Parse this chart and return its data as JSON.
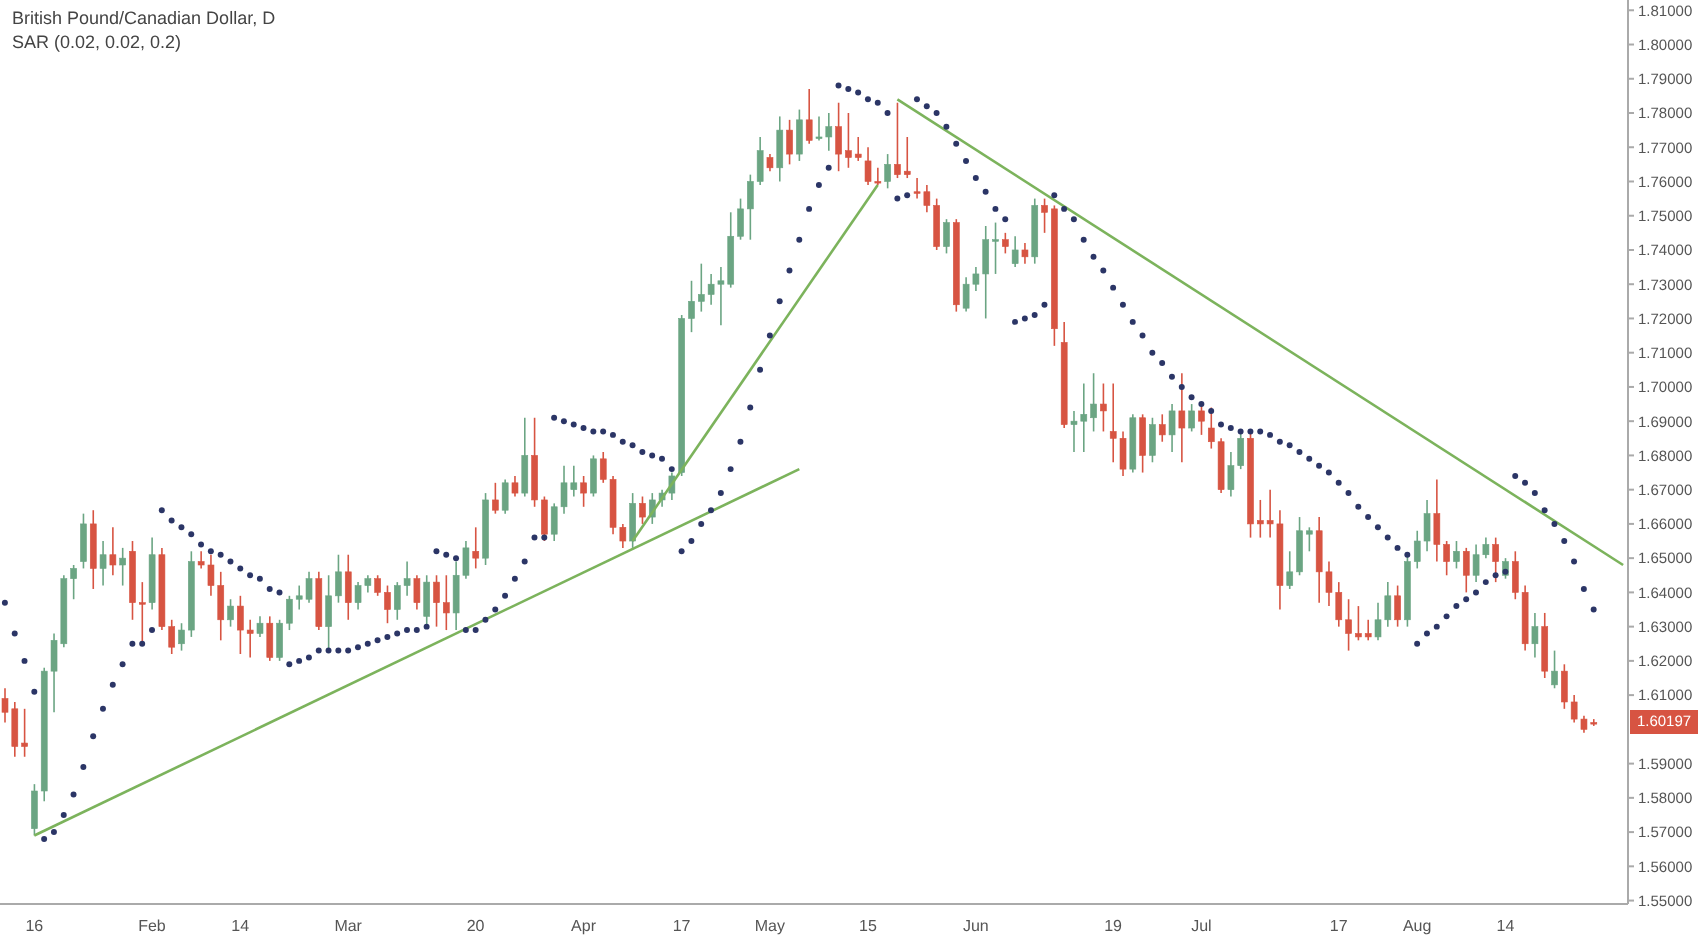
{
  "chart_data": {
    "type": "candlestick",
    "title": "British Pound/Canadian Dollar, D",
    "subtitle": "SAR (0.02, 0.02, 0.2)",
    "categories": [
      null,
      null,
      null,
      "16",
      null,
      null,
      null,
      null,
      null,
      null,
      null,
      null,
      null,
      null,
      null,
      "Feb",
      null,
      null,
      null,
      null,
      null,
      null,
      null,
      null,
      "14",
      null,
      null,
      null,
      null,
      null,
      null,
      null,
      null,
      null,
      null,
      "Mar",
      null,
      null,
      null,
      null,
      null,
      null,
      null,
      null,
      null,
      null,
      null,
      null,
      "20",
      null,
      null,
      null,
      null,
      null,
      null,
      null,
      null,
      null,
      null,
      "Apr",
      null,
      null,
      null,
      null,
      null,
      null,
      null,
      null,
      null,
      "17",
      null,
      null,
      null,
      null,
      null,
      null,
      null,
      null,
      "May",
      null,
      null,
      null,
      null,
      null,
      null,
      null,
      null,
      null,
      "15",
      null,
      null,
      null,
      null,
      null,
      null,
      null,
      null,
      null,
      null,
      "Jun",
      null,
      null,
      null,
      null,
      null,
      null,
      null,
      null,
      null,
      null,
      null,
      null,
      null,
      "19",
      null,
      null,
      null,
      null,
      null,
      null,
      null,
      null,
      "Jul",
      null,
      null,
      null,
      null,
      null,
      null,
      null,
      null,
      null,
      null,
      null,
      null,
      null,
      "17",
      null,
      null,
      null,
      null,
      null,
      null,
      null,
      "Aug",
      null,
      null,
      null,
      null,
      null,
      null,
      null,
      null,
      "14",
      null,
      null,
      null,
      null,
      null,
      null,
      null,
      null,
      null,
      null,
      null,
      null
    ],
    "ohlc": [
      [
        1.609,
        1.612,
        1.602,
        1.605
      ],
      [
        1.606,
        1.608,
        1.592,
        1.595
      ],
      [
        1.596,
        1.606,
        1.592,
        1.595
      ],
      [
        1.571,
        1.584,
        1.569,
        1.582
      ],
      [
        1.582,
        1.618,
        1.579,
        1.617
      ],
      [
        1.617,
        1.628,
        1.605,
        1.626
      ],
      [
        1.625,
        1.645,
        1.624,
        1.644
      ],
      [
        1.644,
        1.648,
        1.638,
        1.647
      ],
      [
        1.649,
        1.663,
        1.647,
        1.66
      ],
      [
        1.66,
        1.664,
        1.641,
        1.647
      ],
      [
        1.647,
        1.655,
        1.642,
        1.651
      ],
      [
        1.651,
        1.659,
        1.645,
        1.648
      ],
      [
        1.648,
        1.653,
        1.642,
        1.65
      ],
      [
        1.652,
        1.655,
        1.632,
        1.637
      ],
      [
        1.637,
        1.643,
        1.625,
        1.637
      ],
      [
        1.637,
        1.656,
        1.635,
        1.651
      ],
      [
        1.651,
        1.653,
        1.629,
        1.63
      ],
      [
        1.63,
        1.632,
        1.622,
        1.624
      ],
      [
        1.625,
        1.631,
        1.623,
        1.629
      ],
      [
        1.629,
        1.652,
        1.627,
        1.649
      ],
      [
        1.649,
        1.652,
        1.647,
        1.648
      ],
      [
        1.648,
        1.651,
        1.639,
        1.642
      ],
      [
        1.642,
        1.646,
        1.626,
        1.632
      ],
      [
        1.632,
        1.638,
        1.63,
        1.636
      ],
      [
        1.636,
        1.639,
        1.622,
        1.629
      ],
      [
        1.629,
        1.632,
        1.621,
        1.628
      ],
      [
        1.628,
        1.633,
        1.627,
        1.631
      ],
      [
        1.631,
        1.633,
        1.62,
        1.621
      ],
      [
        1.621,
        1.632,
        1.62,
        1.631
      ],
      [
        1.631,
        1.639,
        1.629,
        1.638
      ],
      [
        1.638,
        1.642,
        1.635,
        1.639
      ],
      [
        1.638,
        1.646,
        1.637,
        1.644
      ],
      [
        1.644,
        1.646,
        1.629,
        1.63
      ],
      [
        1.63,
        1.645,
        1.623,
        1.639
      ],
      [
        1.639,
        1.651,
        1.637,
        1.646
      ],
      [
        1.646,
        1.651,
        1.632,
        1.637
      ],
      [
        1.637,
        1.643,
        1.635,
        1.642
      ],
      [
        1.642,
        1.645,
        1.64,
        1.644
      ],
      [
        1.644,
        1.645,
        1.639,
        1.64
      ],
      [
        1.64,
        1.642,
        1.631,
        1.635
      ],
      [
        1.635,
        1.643,
        1.632,
        1.642
      ],
      [
        1.642,
        1.649,
        1.639,
        1.644
      ],
      [
        1.644,
        1.645,
        1.635,
        1.637
      ],
      [
        1.633,
        1.645,
        1.63,
        1.643
      ],
      [
        1.643,
        1.645,
        1.63,
        1.637
      ],
      [
        1.637,
        1.645,
        1.629,
        1.634
      ],
      [
        1.634,
        1.649,
        1.629,
        1.645
      ],
      [
        1.645,
        1.655,
        1.644,
        1.653
      ],
      [
        1.652,
        1.659,
        1.647,
        1.65
      ],
      [
        1.65,
        1.669,
        1.648,
        1.667
      ],
      [
        1.667,
        1.672,
        1.663,
        1.664
      ],
      [
        1.664,
        1.673,
        1.663,
        1.672
      ],
      [
        1.672,
        1.674,
        1.668,
        1.669
      ],
      [
        1.669,
        1.691,
        1.668,
        1.68
      ],
      [
        1.68,
        1.691,
        1.665,
        1.667
      ],
      [
        1.667,
        1.668,
        1.655,
        1.657
      ],
      [
        1.657,
        1.666,
        1.655,
        1.665
      ],
      [
        1.665,
        1.677,
        1.663,
        1.672
      ],
      [
        1.67,
        1.677,
        1.668,
        1.672
      ],
      [
        1.672,
        1.674,
        1.665,
        1.669
      ],
      [
        1.669,
        1.68,
        1.668,
        1.679
      ],
      [
        1.679,
        1.681,
        1.672,
        1.673
      ],
      [
        1.673,
        1.674,
        1.657,
        1.659
      ],
      [
        1.659,
        1.66,
        1.653,
        1.655
      ],
      [
        1.655,
        1.669,
        1.653,
        1.666
      ],
      [
        1.666,
        1.668,
        1.66,
        1.662
      ],
      [
        1.662,
        1.669,
        1.66,
        1.667
      ],
      [
        1.667,
        1.67,
        1.665,
        1.669
      ],
      [
        1.669,
        1.675,
        1.667,
        1.674
      ],
      [
        1.675,
        1.721,
        1.674,
        1.72
      ],
      [
        1.72,
        1.731,
        1.716,
        1.725
      ],
      [
        1.725,
        1.736,
        1.722,
        1.727
      ],
      [
        1.727,
        1.733,
        1.724,
        1.73
      ],
      [
        1.73,
        1.735,
        1.718,
        1.731
      ],
      [
        1.73,
        1.751,
        1.729,
        1.744
      ],
      [
        1.744,
        1.755,
        1.743,
        1.752
      ],
      [
        1.752,
        1.762,
        1.743,
        1.76
      ],
      [
        1.76,
        1.773,
        1.759,
        1.769
      ],
      [
        1.767,
        1.768,
        1.763,
        1.764
      ],
      [
        1.764,
        1.779,
        1.76,
        1.775
      ],
      [
        1.775,
        1.778,
        1.765,
        1.768
      ],
      [
        1.768,
        1.781,
        1.766,
        1.778
      ],
      [
        1.778,
        1.787,
        1.771,
        1.772
      ],
      [
        1.773,
        1.779,
        1.772,
        1.773
      ],
      [
        1.773,
        1.78,
        1.769,
        1.776
      ],
      [
        1.776,
        1.783,
        1.763,
        1.768
      ],
      [
        1.769,
        1.78,
        1.764,
        1.767
      ],
      [
        1.768,
        1.773,
        1.766,
        1.767
      ],
      [
        1.766,
        1.77,
        1.759,
        1.76
      ],
      [
        1.76,
        1.764,
        1.759,
        1.76
      ],
      [
        1.76,
        1.768,
        1.758,
        1.765
      ],
      [
        1.765,
        1.783,
        1.761,
        1.762
      ],
      [
        1.763,
        1.773,
        1.761,
        1.762
      ],
      [
        1.757,
        1.761,
        1.755,
        1.757
      ],
      [
        1.757,
        1.759,
        1.751,
        1.753
      ],
      [
        1.753,
        1.755,
        1.74,
        1.741
      ],
      [
        1.741,
        1.749,
        1.739,
        1.748
      ],
      [
        1.748,
        1.749,
        1.722,
        1.724
      ],
      [
        1.723,
        1.732,
        1.722,
        1.73
      ],
      [
        1.73,
        1.735,
        1.728,
        1.733
      ],
      [
        1.733,
        1.747,
        1.72,
        1.743
      ],
      [
        1.743,
        1.748,
        1.733,
        1.743
      ],
      [
        1.743,
        1.745,
        1.739,
        1.741
      ],
      [
        1.736,
        1.744,
        1.735,
        1.74
      ],
      [
        1.74,
        1.742,
        1.736,
        1.738
      ],
      [
        1.738,
        1.755,
        1.736,
        1.753
      ],
      [
        1.753,
        1.755,
        1.745,
        1.751
      ],
      [
        1.752,
        1.753,
        1.712,
        1.717
      ],
      [
        1.713,
        1.719,
        1.688,
        1.689
      ],
      [
        1.689,
        1.693,
        1.681,
        1.69
      ],
      [
        1.69,
        1.701,
        1.681,
        1.692
      ],
      [
        1.691,
        1.704,
        1.687,
        1.695
      ],
      [
        1.695,
        1.701,
        1.687,
        1.693
      ],
      [
        1.687,
        1.701,
        1.678,
        1.685
      ],
      [
        1.685,
        1.687,
        1.674,
        1.676
      ],
      [
        1.676,
        1.692,
        1.675,
        1.691
      ],
      [
        1.691,
        1.692,
        1.675,
        1.68
      ],
      [
        1.68,
        1.691,
        1.678,
        1.689
      ],
      [
        1.689,
        1.692,
        1.684,
        1.686
      ],
      [
        1.686,
        1.695,
        1.681,
        1.693
      ],
      [
        1.693,
        1.704,
        1.678,
        1.688
      ],
      [
        1.688,
        1.695,
        1.687,
        1.693
      ],
      [
        1.693,
        1.695,
        1.686,
        1.69
      ],
      [
        1.688,
        1.694,
        1.682,
        1.684
      ],
      [
        1.684,
        1.685,
        1.669,
        1.67
      ],
      [
        1.67,
        1.681,
        1.668,
        1.677
      ],
      [
        1.677,
        1.687,
        1.676,
        1.685
      ],
      [
        1.685,
        1.687,
        1.656,
        1.66
      ],
      [
        1.661,
        1.667,
        1.656,
        1.66
      ],
      [
        1.661,
        1.67,
        1.656,
        1.66
      ],
      [
        1.66,
        1.664,
        1.635,
        1.642
      ],
      [
        1.642,
        1.652,
        1.641,
        1.646
      ],
      [
        1.646,
        1.662,
        1.645,
        1.658
      ],
      [
        1.657,
        1.659,
        1.652,
        1.658
      ],
      [
        1.658,
        1.662,
        1.637,
        1.646
      ],
      [
        1.646,
        1.649,
        1.636,
        1.64
      ],
      [
        1.64,
        1.643,
        1.63,
        1.632
      ],
      [
        1.632,
        1.638,
        1.623,
        1.628
      ],
      [
        1.628,
        1.636,
        1.626,
        1.627
      ],
      [
        1.628,
        1.632,
        1.626,
        1.627
      ],
      [
        1.627,
        1.637,
        1.626,
        1.632
      ],
      [
        1.632,
        1.643,
        1.63,
        1.639
      ],
      [
        1.639,
        1.642,
        1.63,
        1.632
      ],
      [
        1.632,
        1.651,
        1.63,
        1.649
      ],
      [
        1.649,
        1.658,
        1.647,
        1.655
      ],
      [
        1.655,
        1.667,
        1.652,
        1.663
      ],
      [
        1.663,
        1.673,
        1.649,
        1.654
      ],
      [
        1.654,
        1.655,
        1.645,
        1.649
      ],
      [
        1.649,
        1.655,
        1.647,
        1.652
      ],
      [
        1.652,
        1.653,
        1.64,
        1.645
      ],
      [
        1.645,
        1.654,
        1.643,
        1.651
      ],
      [
        1.651,
        1.656,
        1.65,
        1.654
      ],
      [
        1.654,
        1.656,
        1.643,
        1.649
      ],
      [
        1.645,
        1.65,
        1.644,
        1.649
      ],
      [
        1.649,
        1.652,
        1.638,
        1.64
      ],
      [
        1.64,
        1.642,
        1.623,
        1.625
      ],
      [
        1.625,
        1.634,
        1.621,
        1.63
      ],
      [
        1.63,
        1.634,
        1.615,
        1.617
      ],
      [
        1.613,
        1.623,
        1.612,
        1.617
      ],
      [
        1.617,
        1.619,
        1.606,
        1.608
      ],
      [
        1.608,
        1.61,
        1.602,
        1.603
      ],
      [
        1.603,
        1.604,
        1.599,
        1.6
      ],
      [
        1.602,
        1.603,
        1.601,
        1.602
      ],
      null,
      null,
      null
    ],
    "colors": [
      "#d75442",
      "#d75442",
      "#d75442",
      "#6ba583",
      "#6ba583",
      "#6ba583",
      "#6ba583",
      "#6ba583",
      "#6ba583",
      "#d75442",
      "#6ba583",
      "#d75442",
      "#6ba583",
      "#d75442",
      "#d75442",
      "#6ba583",
      "#d75442",
      "#d75442",
      "#6ba583",
      "#6ba583",
      "#d75442",
      "#d75442",
      "#d75442",
      "#6ba583",
      "#d75442",
      "#d75442",
      "#6ba583",
      "#d75442",
      "#6ba583",
      "#6ba583",
      "#6ba583",
      "#6ba583",
      "#d75442",
      "#6ba583",
      "#6ba583",
      "#d75442",
      "#6ba583",
      "#6ba583",
      "#d75442",
      "#d75442",
      "#6ba583",
      "#6ba583",
      "#d75442",
      "#6ba583",
      "#d75442",
      "#d75442",
      "#6ba583",
      "#6ba583",
      "#d75442",
      "#6ba583",
      "#d75442",
      "#6ba583",
      "#d75442",
      "#6ba583",
      "#d75442",
      "#d75442",
      "#6ba583",
      "#6ba583",
      "#6ba583",
      "#d75442",
      "#6ba583",
      "#d75442",
      "#d75442",
      "#d75442",
      "#6ba583",
      "#d75442",
      "#6ba583",
      "#6ba583",
      "#6ba583",
      "#6ba583",
      "#6ba583",
      "#6ba583",
      "#6ba583",
      "#6ba583",
      "#6ba583",
      "#6ba583",
      "#6ba583",
      "#6ba583",
      "#d75442",
      "#6ba583",
      "#d75442",
      "#6ba583",
      "#d75442",
      "#6ba583",
      "#6ba583",
      "#d75442",
      "#d75442",
      "#d75442",
      "#d75442",
      "#d75442",
      "#6ba583",
      "#d75442",
      "#d75442",
      "#d75442",
      "#d75442",
      "#d75442",
      "#6ba583",
      "#d75442",
      "#6ba583",
      "#6ba583",
      "#6ba583",
      "#6ba583",
      "#d75442",
      "#6ba583",
      "#d75442",
      "#6ba583",
      "#d75442",
      "#d75442",
      "#d75442",
      "#6ba583",
      "#6ba583",
      "#6ba583",
      "#d75442",
      "#d75442",
      "#d75442",
      "#6ba583",
      "#d75442",
      "#6ba583",
      "#d75442",
      "#6ba583",
      "#d75442",
      "#6ba583",
      "#d75442",
      "#d75442",
      "#d75442",
      "#6ba583",
      "#6ba583",
      "#d75442",
      "#d75442",
      "#d75442",
      "#d75442",
      "#6ba583",
      "#6ba583",
      "#6ba583",
      "#d75442",
      "#d75442",
      "#d75442",
      "#d75442",
      "#d75442",
      "#d75442",
      "#6ba583",
      "#6ba583",
      "#d75442",
      "#6ba583",
      "#6ba583",
      "#6ba583",
      "#d75442",
      "#d75442",
      "#6ba583",
      "#d75442",
      "#6ba583",
      "#6ba583",
      "#d75442",
      "#6ba583",
      "#d75442",
      "#d75442",
      "#6ba583",
      "#d75442",
      "#6ba583",
      "#d75442",
      "#d75442",
      "#d75442",
      "#d75442",
      null,
      null,
      null
    ],
    "series": [
      {
        "type": "scatter",
        "color": "#2b3566",
        "values": [
          1.637,
          1.628,
          1.62,
          1.611,
          1.568,
          1.57,
          1.575,
          1.581,
          1.589,
          1.598,
          1.606,
          1.613,
          1.619,
          1.625,
          1.625,
          1.629,
          1.664,
          1.661,
          1.659,
          1.657,
          1.654,
          1.652,
          1.651,
          1.649,
          1.647,
          1.645,
          1.644,
          1.641,
          1.64,
          1.619,
          1.62,
          1.621,
          1.623,
          1.623,
          1.623,
          1.623,
          1.624,
          1.625,
          1.626,
          1.627,
          1.628,
          1.629,
          1.629,
          1.63,
          1.652,
          1.651,
          1.65,
          1.629,
          1.629,
          1.632,
          1.635,
          1.639,
          1.644,
          1.649,
          1.656,
          1.656,
          1.691,
          1.69,
          1.689,
          1.688,
          1.687,
          1.687,
          1.686,
          1.684,
          1.683,
          1.681,
          1.68,
          1.679,
          1.676,
          1.652,
          1.655,
          1.66,
          1.664,
          1.669,
          1.676,
          1.684,
          1.694,
          1.705,
          1.715,
          1.725,
          1.734,
          1.743,
          1.752,
          1.759,
          1.764,
          1.788,
          1.787,
          1.786,
          1.784,
          1.783,
          1.78,
          1.755,
          1.756,
          1.784,
          1.782,
          1.78,
          1.776,
          1.771,
          1.766,
          1.761,
          1.757,
          1.752,
          1.749,
          1.719,
          1.72,
          1.721,
          1.724,
          1.756,
          1.752,
          1.749,
          1.743,
          1.738,
          1.734,
          1.729,
          1.724,
          1.719,
          1.715,
          1.71,
          1.707,
          1.703,
          1.7,
          1.697,
          1.695,
          1.693,
          1.689,
          1.688,
          1.687,
          1.687,
          1.687,
          1.686,
          1.684,
          1.683,
          1.681,
          1.679,
          1.677,
          1.675,
          1.672,
          1.669,
          1.665,
          1.662,
          1.659,
          1.656,
          1.653,
          1.651,
          1.625,
          1.628,
          1.63,
          1.633,
          1.636,
          1.638,
          1.64,
          1.643,
          1.645,
          1.646,
          1.674,
          1.672,
          1.669,
          1.664,
          1.66,
          1.655,
          1.649,
          1.641,
          1.635,
          null,
          null,
          null
        ]
      },
      {
        "type": "line",
        "color": "#7cb35c",
        "values": [
          null,
          null,
          null,
          1.569,
          null,
          null,
          null,
          null,
          null,
          null,
          null,
          null,
          null,
          null,
          null,
          null,
          null,
          null,
          null,
          null,
          null,
          null,
          null,
          null,
          null,
          null,
          null,
          null,
          null,
          null,
          null,
          null,
          null,
          null,
          null,
          null,
          null,
          null,
          null,
          null,
          null,
          null,
          null,
          null,
          null,
          null,
          null,
          null,
          null,
          null,
          null,
          null,
          null,
          null,
          null,
          null,
          null,
          null,
          null,
          null,
          null,
          null,
          null,
          null,
          null,
          null,
          null,
          null,
          null,
          null,
          null,
          null,
          null,
          null,
          null,
          null,
          null,
          null,
          null,
          null,
          null,
          1.676,
          null,
          null,
          null,
          null,
          null,
          null,
          null,
          null,
          null,
          null,
          null,
          null,
          null,
          null,
          null,
          null,
          null,
          null,
          null,
          null,
          null,
          null,
          null,
          null,
          null,
          null,
          null,
          null,
          null,
          null,
          null,
          null,
          null,
          null,
          null,
          null,
          null,
          null,
          null,
          null,
          null,
          null,
          null,
          null,
          null,
          null,
          null,
          null,
          null,
          null,
          null,
          null,
          null,
          null,
          null,
          null,
          null,
          null,
          null,
          null,
          null,
          null,
          null,
          null,
          null,
          null,
          null,
          null,
          null,
          null,
          null,
          null,
          null,
          null,
          null,
          null,
          null,
          null,
          null,
          null,
          null,
          null,
          null,
          null
        ]
      },
      {
        "type": "line",
        "color": "#7cb35c",
        "values": [
          null,
          null,
          null,
          null,
          null,
          null,
          null,
          null,
          null,
          null,
          null,
          null,
          null,
          null,
          null,
          null,
          null,
          null,
          null,
          null,
          null,
          null,
          null,
          null,
          null,
          null,
          null,
          null,
          null,
          null,
          null,
          null,
          null,
          null,
          null,
          null,
          null,
          null,
          null,
          null,
          null,
          null,
          null,
          null,
          null,
          null,
          null,
          null,
          null,
          null,
          null,
          null,
          null,
          null,
          null,
          null,
          null,
          null,
          null,
          null,
          null,
          null,
          null,
          null,
          1.655,
          null,
          null,
          null,
          null,
          null,
          null,
          null,
          null,
          null,
          null,
          null,
          null,
          null,
          null,
          null,
          null,
          null,
          null,
          null,
          null,
          null,
          null,
          null,
          null,
          1.759,
          null,
          null,
          null,
          null,
          null,
          null,
          null,
          null,
          null,
          null,
          null,
          null,
          null,
          null,
          null,
          null,
          null,
          null,
          null,
          null,
          null,
          null,
          null,
          null,
          null,
          null,
          null,
          null,
          null,
          null,
          null,
          null,
          null,
          null,
          null,
          null,
          null,
          null,
          null,
          null,
          null,
          null,
          null,
          null,
          null,
          null,
          null,
          null,
          null,
          null,
          null,
          null,
          null,
          null,
          null,
          null,
          null,
          null,
          null,
          null,
          null,
          null,
          null,
          null,
          null,
          null,
          null,
          null,
          null,
          null,
          null,
          null,
          null,
          null,
          null,
          null
        ]
      },
      {
        "type": "line",
        "color": "#7cb35c",
        "values": [
          null,
          null,
          null,
          null,
          null,
          null,
          null,
          null,
          null,
          null,
          null,
          null,
          null,
          null,
          null,
          null,
          null,
          null,
          null,
          null,
          null,
          null,
          null,
          null,
          null,
          null,
          null,
          null,
          null,
          null,
          null,
          null,
          null,
          null,
          null,
          null,
          null,
          null,
          null,
          null,
          null,
          null,
          null,
          null,
          null,
          null,
          null,
          null,
          null,
          null,
          null,
          null,
          null,
          null,
          null,
          null,
          null,
          null,
          null,
          null,
          null,
          null,
          null,
          null,
          null,
          null,
          null,
          null,
          null,
          null,
          null,
          null,
          null,
          null,
          null,
          null,
          null,
          null,
          null,
          null,
          null,
          null,
          null,
          null,
          null,
          null,
          null,
          null,
          null,
          null,
          null,
          1.784,
          null,
          null,
          null,
          null,
          null,
          null,
          null,
          null,
          null,
          null,
          null,
          null,
          null,
          null,
          null,
          null,
          null,
          null,
          null,
          null,
          null,
          null,
          null,
          null,
          null,
          null,
          null,
          null,
          null,
          null,
          null,
          null,
          null,
          null,
          null,
          null,
          null,
          null,
          null,
          null,
          null,
          null,
          null,
          null,
          null,
          null,
          null,
          null,
          null,
          null,
          null,
          null,
          null,
          null,
          null,
          null,
          null,
          null,
          null,
          null,
          null,
          null,
          null,
          null,
          null,
          null,
          null,
          null,
          null,
          null,
          null,
          null,
          null,
          1.648
        ]
      }
    ],
    "ylim": [
      1.549,
      1.813
    ],
    "yticks": [
      {
        "value": 1.81,
        "label": "1.81000"
      },
      {
        "value": 1.8,
        "label": "1.80000"
      },
      {
        "value": 1.79,
        "label": "1.79000"
      },
      {
        "value": 1.78,
        "label": "1.78000"
      },
      {
        "value": 1.77,
        "label": "1.77000"
      },
      {
        "value": 1.76,
        "label": "1.76000"
      },
      {
        "value": 1.75,
        "label": "1.75000"
      },
      {
        "value": 1.74,
        "label": "1.74000"
      },
      {
        "value": 1.73,
        "label": "1.73000"
      },
      {
        "value": 1.72,
        "label": "1.72000"
      },
      {
        "value": 1.71,
        "label": "1.71000"
      },
      {
        "value": 1.7,
        "label": "1.70000"
      },
      {
        "value": 1.69,
        "label": "1.69000"
      },
      {
        "value": 1.68,
        "label": "1.68000"
      },
      {
        "value": 1.67,
        "label": "1.67000"
      },
      {
        "value": 1.66,
        "label": "1.66000"
      },
      {
        "value": 1.65,
        "label": "1.65000"
      },
      {
        "value": 1.64,
        "label": "1.64000"
      },
      {
        "value": 1.63,
        "label": "1.63000"
      },
      {
        "value": 1.62,
        "label": "1.62000"
      },
      {
        "value": 1.61,
        "label": "1.61000"
      },
      {
        "value": 1.59,
        "label": "1.59000"
      },
      {
        "value": 1.58,
        "label": "1.58000"
      },
      {
        "value": 1.57,
        "label": "1.57000"
      },
      {
        "value": 1.56,
        "label": "1.56000"
      },
      {
        "value": 1.55,
        "label": "1.55000"
      }
    ],
    "annotations": [
      {
        "text": "1.60197",
        "y": 1.60197
      }
    ]
  }
}
